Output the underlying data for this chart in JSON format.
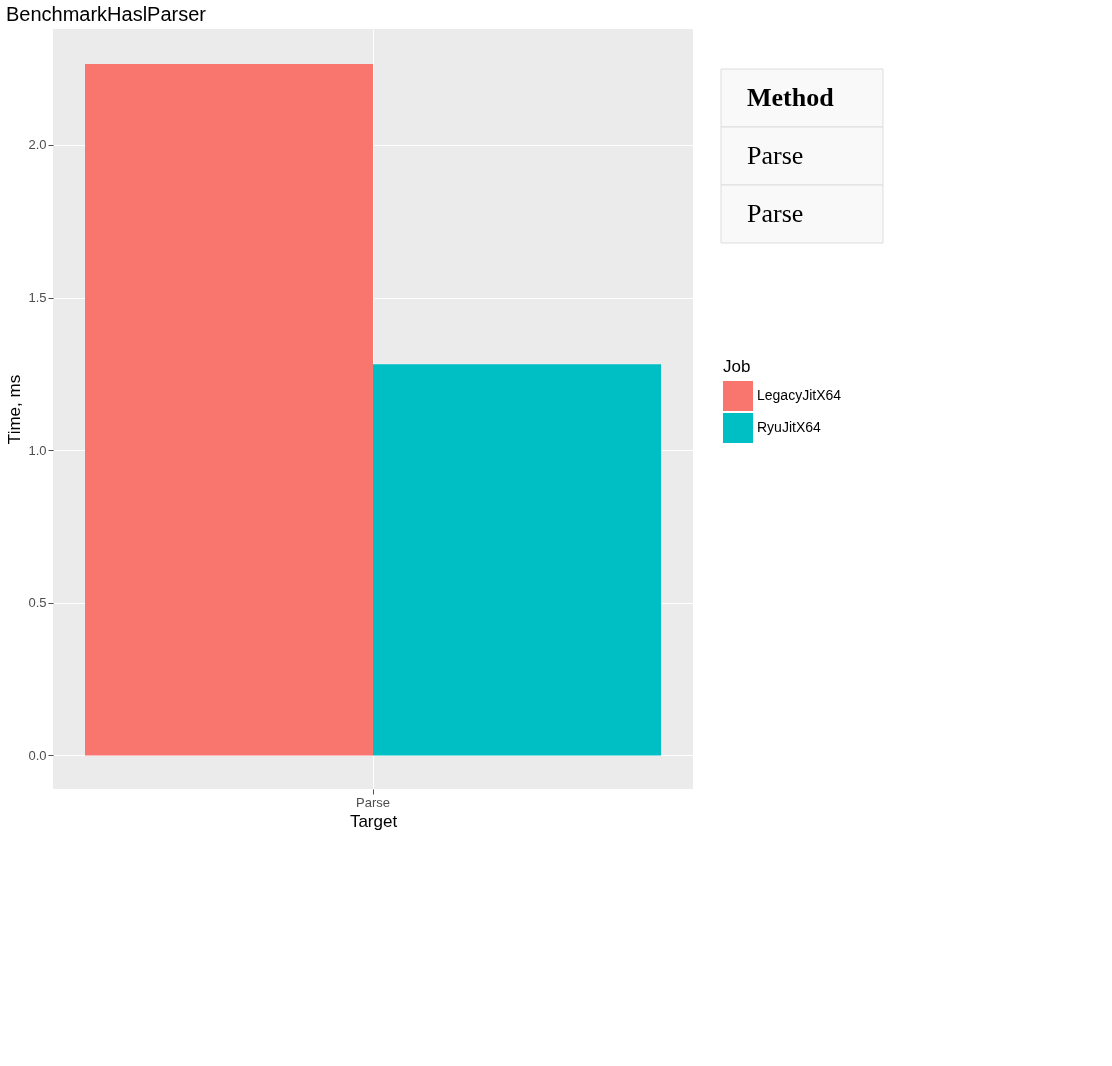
{
  "chart_data": {
    "type": "bar",
    "title": "BenchmarkHaslParser",
    "xlabel": "Target",
    "ylabel": "Time, ms",
    "legend_title": "Job",
    "categories": [
      "Parse"
    ],
    "series": [
      {
        "name": "LegacyJitX64",
        "color": "#f8766d",
        "values": [
          2.265
        ]
      },
      {
        "name": "RyuJitX64",
        "color": "#00bfc4",
        "values": [
          1.282
        ]
      }
    ],
    "ylim": [
      -0.11,
      2.38
    ],
    "yticks": [
      {
        "value": 0,
        "label": "0.0"
      },
      0.5,
      {
        "value": 1,
        "label": "1.0"
      },
      1.5,
      {
        "value": 2,
        "label": "2.0"
      }
    ],
    "grid": true,
    "legend": "right",
    "annotations": [
      "Method",
      "Parse",
      "Parse"
    ]
  }
}
